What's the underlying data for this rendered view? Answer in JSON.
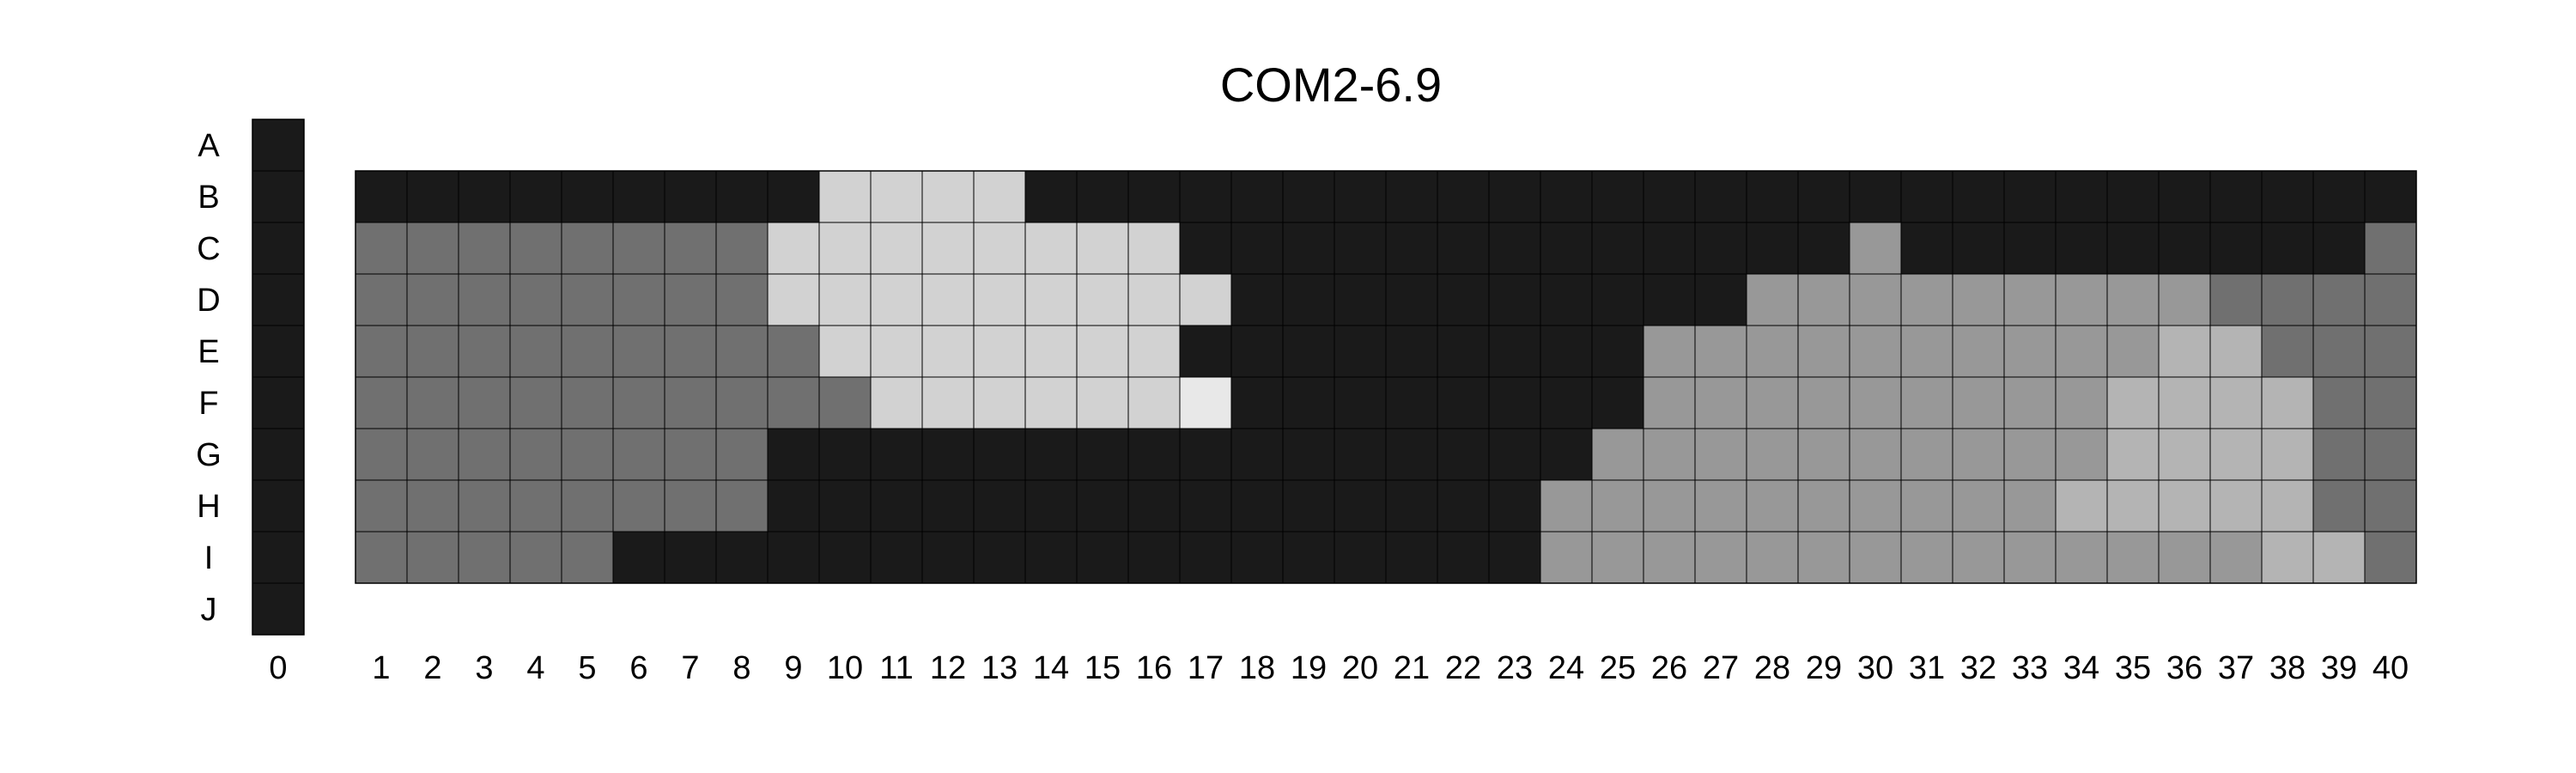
{
  "chart_data": {
    "type": "heatmap",
    "title": "COM2-6.9",
    "rows": [
      "A",
      "B",
      "C",
      "D",
      "E",
      "F",
      "G",
      "H",
      "I",
      "J"
    ],
    "column_zero": {
      "label": "0",
      "values": [
        0,
        0,
        0,
        0,
        0,
        0,
        0,
        0,
        0,
        0
      ]
    },
    "columns": [
      "1",
      "2",
      "3",
      "4",
      "5",
      "6",
      "7",
      "8",
      "9",
      "10",
      "11",
      "12",
      "13",
      "14",
      "15",
      "16",
      "17",
      "18",
      "19",
      "20",
      "21",
      "22",
      "23",
      "24",
      "25",
      "26",
      "27",
      "28",
      "29",
      "30",
      "31",
      "32",
      "33",
      "34",
      "35",
      "36",
      "37",
      "38",
      "39",
      "40"
    ],
    "grid_rows": [
      "B",
      "C",
      "D",
      "E",
      "F",
      "G",
      "H",
      "I"
    ],
    "levels": [
      [
        0,
        0,
        0,
        0,
        0,
        0,
        0,
        0,
        0,
        4,
        4,
        4,
        4,
        0,
        0,
        0,
        0,
        0,
        0,
        0,
        0,
        0,
        0,
        0,
        0,
        0,
        0,
        0,
        0,
        0,
        0,
        0,
        0,
        0,
        0,
        0,
        0,
        0,
        0,
        0
      ],
      [
        1,
        1,
        1,
        1,
        1,
        1,
        1,
        1,
        4,
        4,
        4,
        4,
        4,
        4,
        4,
        4,
        0,
        0,
        0,
        0,
        0,
        0,
        0,
        0,
        0,
        0,
        0,
        0,
        0,
        2,
        0,
        0,
        0,
        0,
        0,
        0,
        0,
        0,
        0,
        1
      ],
      [
        1,
        1,
        1,
        1,
        1,
        1,
        1,
        1,
        4,
        4,
        4,
        4,
        4,
        4,
        4,
        4,
        4,
        0,
        0,
        0,
        0,
        0,
        0,
        0,
        0,
        0,
        0,
        2,
        2,
        2,
        2,
        2,
        2,
        2,
        2,
        2,
        1,
        1,
        1,
        1
      ],
      [
        1,
        1,
        1,
        1,
        1,
        1,
        1,
        1,
        1,
        4,
        4,
        4,
        4,
        4,
        4,
        4,
        0,
        0,
        0,
        0,
        0,
        0,
        0,
        0,
        0,
        2,
        2,
        2,
        2,
        2,
        2,
        2,
        2,
        2,
        2,
        3,
        3,
        1,
        1,
        1
      ],
      [
        1,
        1,
        1,
        1,
        1,
        1,
        1,
        1,
        1,
        1,
        4,
        4,
        4,
        4,
        4,
        4,
        5,
        0,
        0,
        0,
        0,
        0,
        0,
        0,
        0,
        2,
        2,
        2,
        2,
        2,
        2,
        2,
        2,
        2,
        3,
        3,
        3,
        3,
        1,
        1
      ],
      [
        1,
        1,
        1,
        1,
        1,
        1,
        1,
        1,
        0,
        0,
        0,
        0,
        0,
        0,
        0,
        0,
        0,
        0,
        0,
        0,
        0,
        0,
        0,
        0,
        2,
        2,
        2,
        2,
        2,
        2,
        2,
        2,
        2,
        2,
        3,
        3,
        3,
        3,
        1,
        1
      ],
      [
        1,
        1,
        1,
        1,
        1,
        1,
        1,
        1,
        0,
        0,
        0,
        0,
        0,
        0,
        0,
        0,
        0,
        0,
        0,
        0,
        0,
        0,
        0,
        2,
        2,
        2,
        2,
        2,
        2,
        2,
        2,
        2,
        2,
        3,
        3,
        3,
        3,
        3,
        1,
        1
      ],
      [
        1,
        1,
        1,
        1,
        1,
        0,
        0,
        0,
        0,
        0,
        0,
        0,
        0,
        0,
        0,
        0,
        0,
        0,
        0,
        0,
        0,
        0,
        0,
        2,
        2,
        2,
        2,
        2,
        2,
        2,
        2,
        2,
        2,
        2,
        2,
        2,
        2,
        3,
        3,
        1
      ]
    ],
    "level_colors": [
      "#1a1a1a",
      "#707070",
      "#989898",
      "#b4b4b4",
      "#d2d2d2",
      "#e8e8e8"
    ],
    "grid": true,
    "legend": "none"
  }
}
